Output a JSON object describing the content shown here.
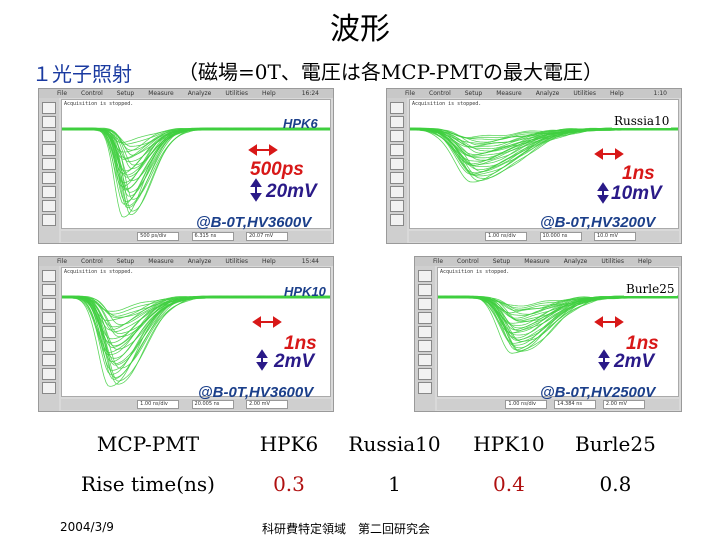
{
  "title": "波形",
  "subtitle_left": "１光子照射",
  "subtitle_right": "（磁場=0T、電圧は各MCP-PMTの最大電圧）",
  "scope_menu": [
    "File",
    "Control",
    "Setup",
    "Measure",
    "Analyze",
    "Utilities",
    "Help"
  ],
  "scope_message": "Acquisition is stopped.",
  "scopes": [
    {
      "id": "hpk6",
      "label": "HPK6",
      "external_label": "",
      "time_div": "500ps",
      "volt_div": "20mV",
      "conditions": "@B-0T,HV3600V",
      "status": [
        "500 ps/div",
        "6.315 ns",
        "20.07 mV"
      ],
      "clock": "16:24",
      "peak_depth": 0.92,
      "peak_pos": 0.24,
      "width": 0.07
    },
    {
      "id": "russia10",
      "label": "",
      "external_label": "Russia10",
      "time_div": "1ns",
      "volt_div": "10mV",
      "conditions": "@B-0T,HV3200V",
      "status": [
        "1.00 ns/div",
        "10.000 ns",
        "10.0 mV"
      ],
      "clock": "1:10",
      "peak_depth": 0.55,
      "peak_pos": 0.24,
      "width": 0.14
    },
    {
      "id": "hpk10",
      "label": "HPK10",
      "external_label": "",
      "time_div": "1ns",
      "volt_div": "2mV",
      "conditions": "@B-0T,HV3600V",
      "status": [
        "1.00 ns/div",
        "20.005 ns",
        "2.00 mV"
      ],
      "clock": "15:44",
      "peak_depth": 0.95,
      "peak_pos": 0.19,
      "width": 0.09
    },
    {
      "id": "burle25",
      "label": "",
      "external_label": "Burle25",
      "time_div": "1ns",
      "volt_div": "2mV",
      "conditions": "@B-0T,HV2500V",
      "status": [
        "1.00 ns/div",
        "14.384 ns",
        "2.00 mV"
      ],
      "clock": "1:10",
      "peak_depth": 0.6,
      "peak_pos": 0.32,
      "width": 0.12
    }
  ],
  "table": {
    "header_label": "MCP-PMT",
    "row_label": "Rise time(ns)",
    "columns": [
      "HPK6",
      "Russia10",
      "HPK10",
      "Burle25"
    ],
    "values": [
      "0.3",
      "1",
      "0.4",
      "0.8"
    ]
  },
  "footer": {
    "date": "2004/3/9",
    "center": "科研費特定領域　第二回研究会"
  },
  "colors": {
    "trace": "#3fcf3f",
    "time_annotation": "#d81818",
    "volt_annotation": "#2a1a88",
    "value_red": "#b01010"
  }
}
